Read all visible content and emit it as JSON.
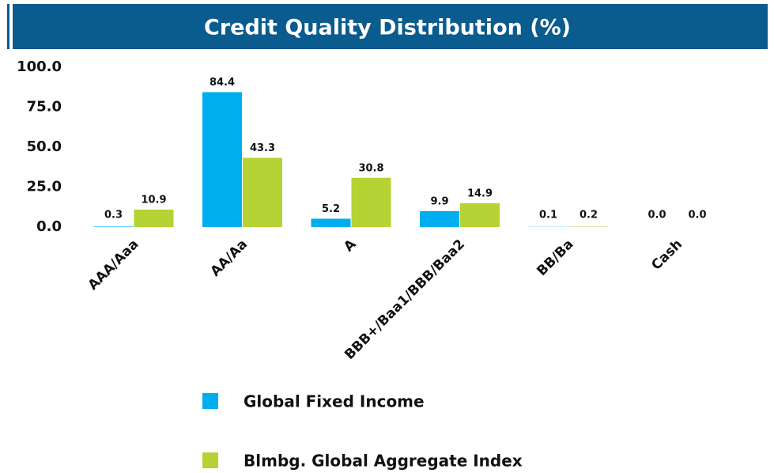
{
  "chart_data": {
    "type": "bar",
    "title": "Credit Quality Distribution (%)",
    "categories": [
      "AAA/Aaa",
      "AA/Aa",
      "A",
      "BBB+/Baa1/BBB/Baa2",
      "BB/Ba",
      "Cash"
    ],
    "series": [
      {
        "name": "Global Fixed Income",
        "color": "#00aeef",
        "values": [
          0.3,
          84.4,
          5.2,
          9.9,
          0.1,
          0
        ],
        "value_labels": [
          "0.3",
          "84.4",
          "5.2",
          "9.9",
          "0.1",
          "0.0"
        ]
      },
      {
        "name": "Blmbg. Global Aggregate Index",
        "color": "#b5d334",
        "values": [
          10.9,
          43.3,
          30.8,
          14.9,
          0.2,
          0
        ],
        "value_labels": [
          "10.9",
          "43.3",
          "30.8",
          "14.9",
          "0.2",
          "0.0"
        ]
      }
    ],
    "ylim": [
      0,
      100
    ],
    "yticks": [
      {
        "value": 0,
        "label": "0.0"
      },
      {
        "value": 25,
        "label": "25.0"
      },
      {
        "value": 50,
        "label": "50.0"
      },
      {
        "value": 75,
        "label": "75.0"
      },
      {
        "value": 100,
        "label": "100.0"
      }
    ],
    "grid": false
  }
}
